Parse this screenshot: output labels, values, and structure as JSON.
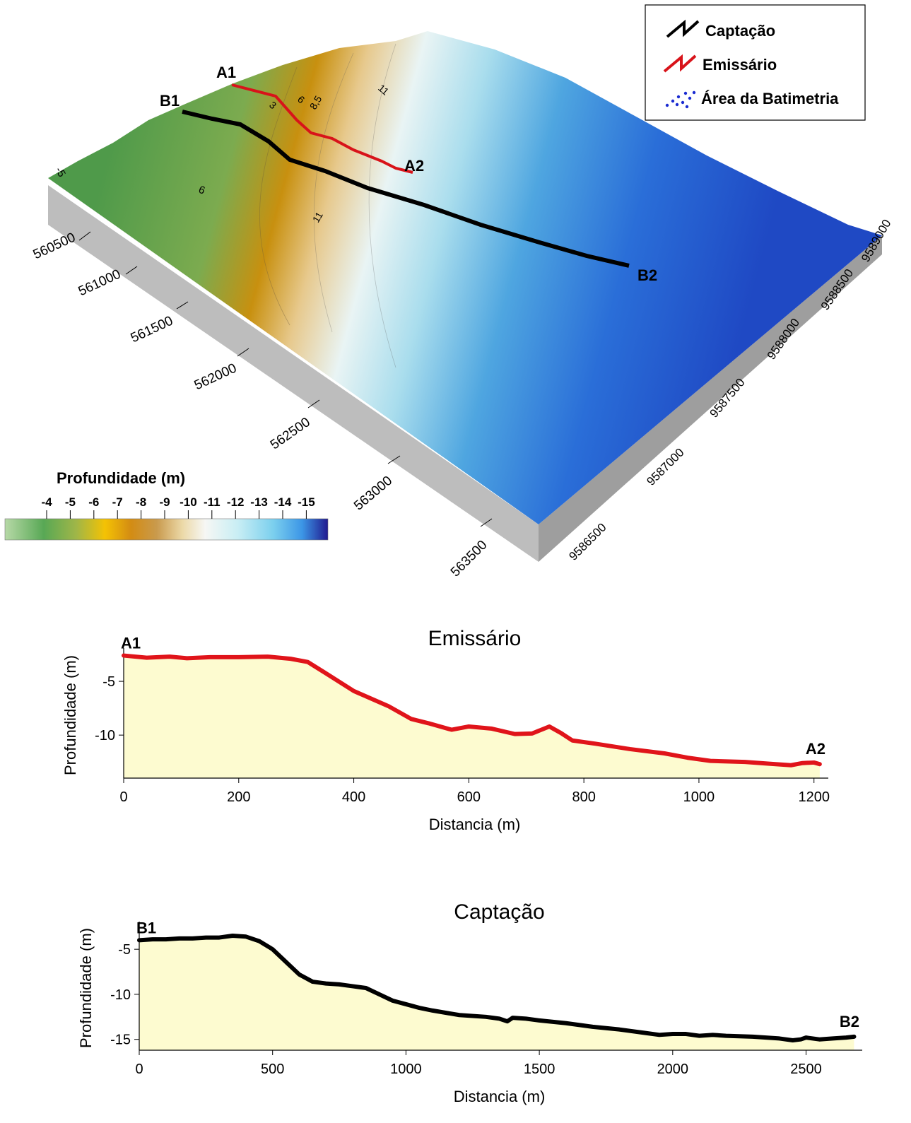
{
  "legend": {
    "items": [
      {
        "label": "Captação",
        "color": "#000000"
      },
      {
        "label": "Emissário",
        "color": "#e0141a"
      },
      {
        "label": "Área da Batimetria",
        "color": "#1a2bd1"
      }
    ]
  },
  "map": {
    "points": {
      "a1": "A1",
      "a2": "A2",
      "b1": "B1",
      "b2": "B2"
    },
    "easting_ticks": [
      "560500",
      "561000",
      "561500",
      "562000",
      "562500",
      "563000",
      "563500"
    ],
    "northing_ticks": [
      "9589000",
      "9588500",
      "9588000",
      "9587500",
      "9587000",
      "9586500"
    ],
    "contour_labels": [
      "-5",
      "6",
      "3",
      "6",
      "8,5",
      "11",
      "11"
    ]
  },
  "colorbar": {
    "title": "Profundidade (m)",
    "ticks": [
      "-4",
      "-5",
      "-6",
      "-7",
      "-8",
      "-9",
      "-10",
      "-11",
      "-12",
      "-13",
      "-14",
      "-15"
    ]
  },
  "chart_data": [
    {
      "type": "area",
      "title": "Emissário",
      "xlabel": "Distancia (m)",
      "ylabel": "Profundidade (m)",
      "xlim": [
        0,
        1220
      ],
      "ylim": [
        -14,
        -2.3
      ],
      "xticks": [
        0,
        200,
        400,
        600,
        800,
        1000,
        1200
      ],
      "yticks": [
        -5,
        -10
      ],
      "start_label": "A1",
      "end_label": "A2",
      "line_color": "#e0141a",
      "fill_color": "#fdfbd0",
      "series": [
        {
          "x": [
            0,
            40,
            80,
            110,
            150,
            200,
            250,
            290,
            320,
            350,
            400,
            460,
            500,
            530,
            570,
            600,
            640,
            680,
            710,
            740,
            760,
            780,
            820,
            880,
            940,
            980,
            1020,
            1080,
            1120,
            1160,
            1180,
            1200,
            1210
          ],
          "y": [
            -2.6,
            -2.8,
            -2.7,
            -2.85,
            -2.75,
            -2.75,
            -2.7,
            -2.9,
            -3.2,
            -4.2,
            -5.9,
            -7.3,
            -8.5,
            -8.9,
            -9.5,
            -9.2,
            -9.4,
            -9.9,
            -9.85,
            -9.2,
            -9.8,
            -10.5,
            -10.8,
            -11.3,
            -11.7,
            -12.1,
            -12.4,
            -12.5,
            -12.65,
            -12.8,
            -12.6,
            -12.55,
            -12.7
          ]
        }
      ]
    },
    {
      "type": "area",
      "title": "Captação",
      "xlabel": "Distancia (m)",
      "ylabel": "Profundidade (m)",
      "xlim": [
        0,
        2700
      ],
      "ylim": [
        -16.2,
        -2.4
      ],
      "xticks": [
        0,
        500,
        1000,
        1500,
        2000,
        2500
      ],
      "yticks": [
        -5,
        -10,
        -15
      ],
      "start_label": "B1",
      "end_label": "B2",
      "line_color": "#000000",
      "fill_color": "#fdfbd0",
      "series": [
        {
          "x": [
            0,
            50,
            100,
            150,
            200,
            250,
            300,
            350,
            400,
            450,
            500,
            550,
            600,
            650,
            700,
            750,
            800,
            850,
            900,
            950,
            1000,
            1050,
            1100,
            1200,
            1300,
            1350,
            1380,
            1400,
            1450,
            1500,
            1600,
            1700,
            1800,
            1900,
            1950,
            2000,
            2050,
            2100,
            2150,
            2200,
            2300,
            2400,
            2450,
            2480,
            2500,
            2550,
            2600,
            2650,
            2680
          ],
          "y": [
            -4.0,
            -3.9,
            -3.9,
            -3.8,
            -3.8,
            -3.7,
            -3.7,
            -3.5,
            -3.6,
            -4.1,
            -5.0,
            -6.4,
            -7.8,
            -8.6,
            -8.8,
            -8.9,
            -9.1,
            -9.3,
            -10.0,
            -10.7,
            -11.1,
            -11.5,
            -11.8,
            -12.3,
            -12.5,
            -12.7,
            -13.0,
            -12.6,
            -12.7,
            -12.9,
            -13.2,
            -13.6,
            -13.9,
            -14.3,
            -14.5,
            -14.4,
            -14.4,
            -14.6,
            -14.5,
            -14.6,
            -14.7,
            -14.9,
            -15.1,
            -15.0,
            -14.8,
            -15.0,
            -14.9,
            -14.8,
            -14.7
          ]
        }
      ]
    }
  ]
}
